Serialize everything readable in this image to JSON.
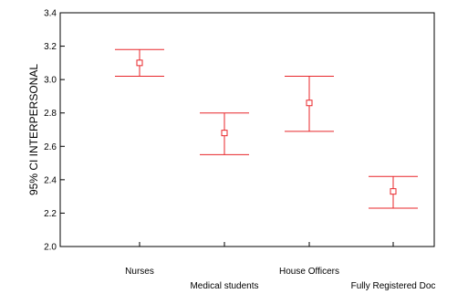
{
  "chart_data": {
    "type": "errorbar",
    "categories": [
      "Nurses",
      "Medical students",
      "House Officers",
      "Fully Registered Doc"
    ],
    "mean": [
      3.1,
      2.68,
      2.86,
      2.33
    ],
    "lower": [
      3.02,
      2.55,
      2.69,
      2.23
    ],
    "upper": [
      3.18,
      2.8,
      3.02,
      2.42
    ],
    "ylabel": "95% CI INTERPERSONAL",
    "xlabel": "",
    "ylim": [
      2.0,
      3.4
    ],
    "yticks": [
      "2.0",
      "2.2",
      "2.4",
      "2.6",
      "2.8",
      "3.0",
      "3.2",
      "3.4"
    ],
    "grid": false,
    "color": "#e8262a"
  }
}
